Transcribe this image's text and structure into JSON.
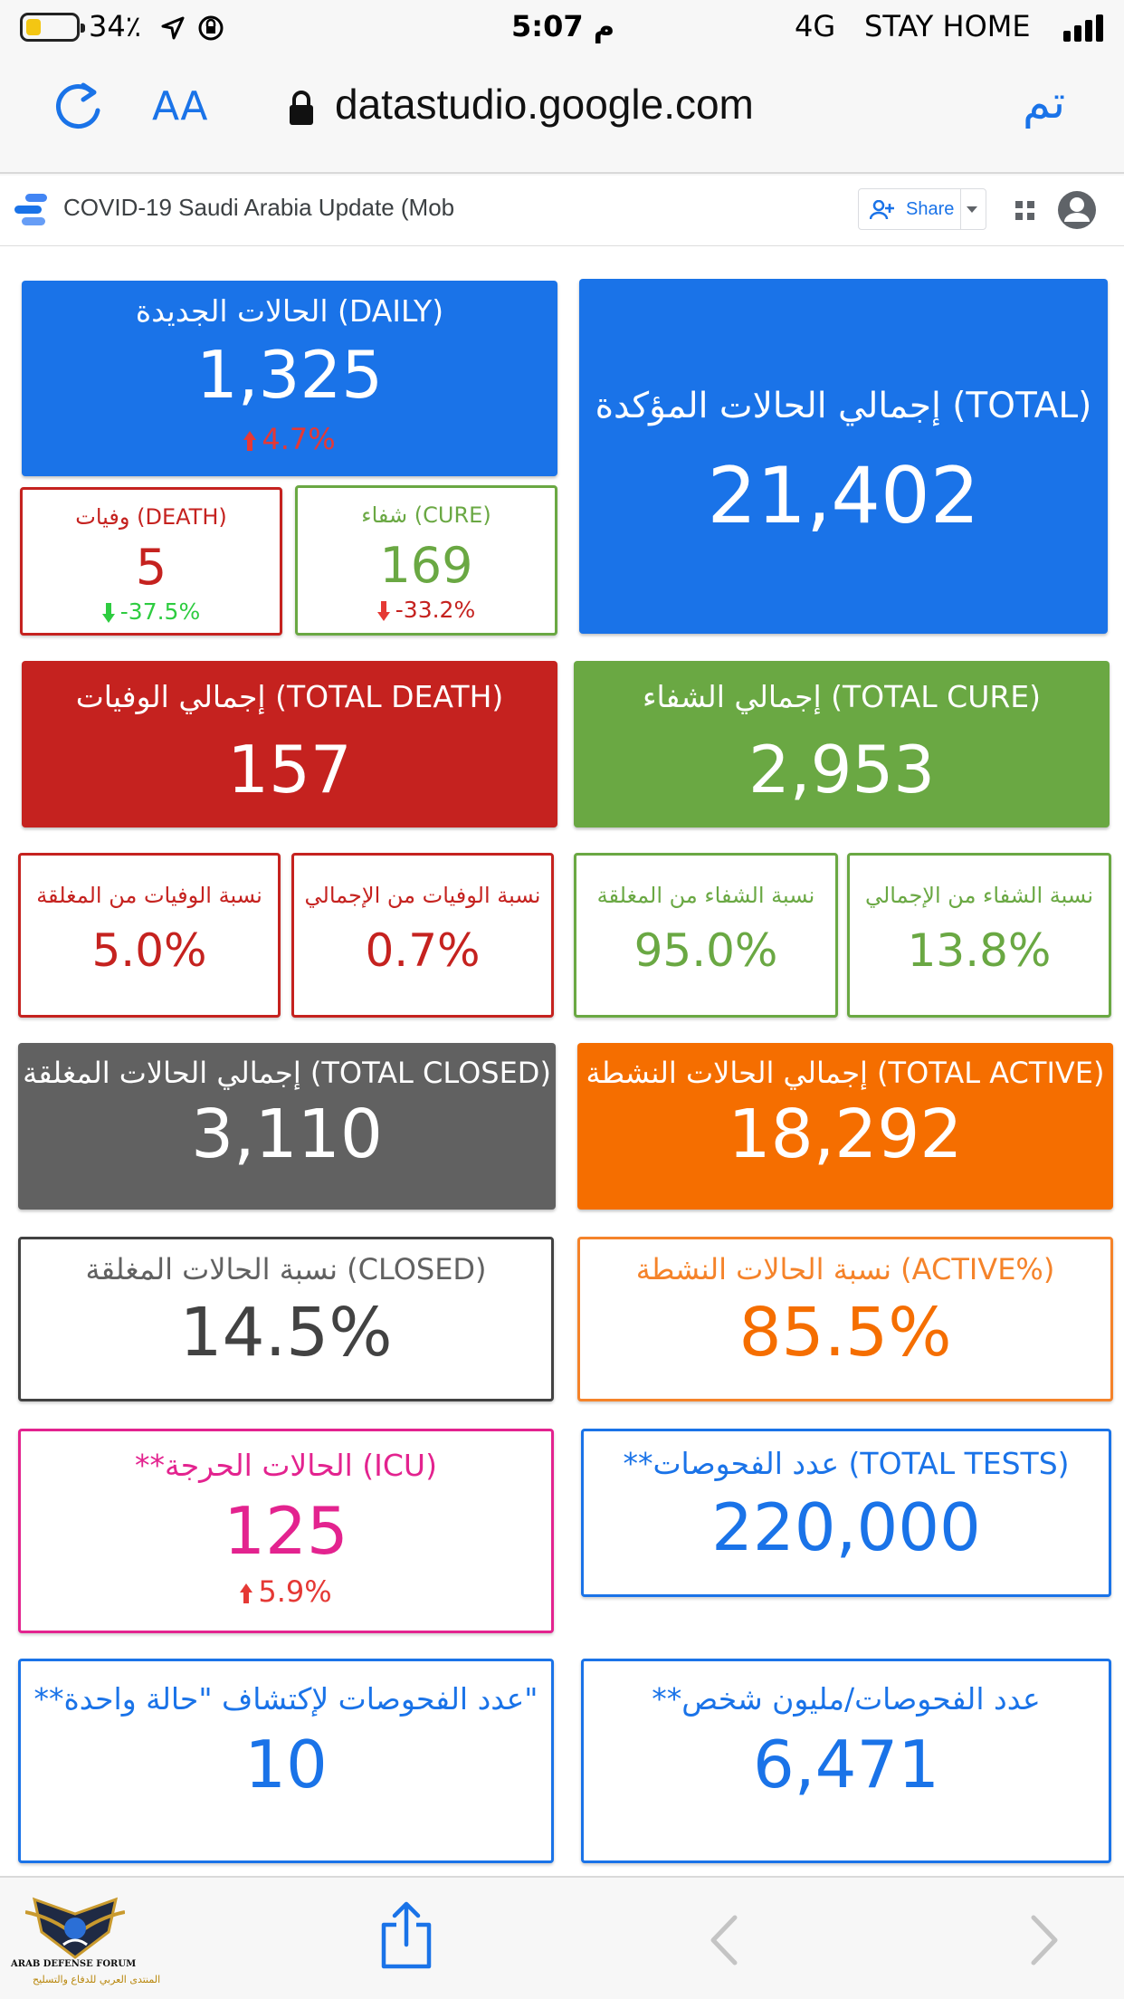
{
  "status_bar": {
    "battery": "34٪",
    "time": "5:07 م",
    "network": "4G",
    "carrier": "STAY HOME"
  },
  "browser": {
    "text_size_label": "AA",
    "url": "datastudio.google.com",
    "done_label": "تم"
  },
  "report": {
    "title": "COVID-19 Saudi Arabia Update (Mob",
    "share_label": "Share"
  },
  "cards": {
    "daily": {
      "label": "الحالات الجديدة (DAILY)",
      "value": "1,325",
      "change": "4.7%"
    },
    "total": {
      "label": "إجمالي الحالات المؤكدة (TOTAL)",
      "value": "21,402"
    },
    "death": {
      "label": "وفيات (DEATH)",
      "value": "5",
      "change": "-37.5%"
    },
    "cure": {
      "label": "شفاء (CURE)",
      "value": "169",
      "change": "-33.2%"
    },
    "total_death": {
      "label": "إجمالي الوفيات (TOTAL DEATH)",
      "value": "157"
    },
    "total_cure": {
      "label": "إجمالي الشفاء (TOTAL CURE)",
      "value": "2,953"
    },
    "death_closed_pct": {
      "label": "نسبة الوفيات من المغلقة",
      "value": "5.0%"
    },
    "death_total_pct": {
      "label": "نسبة الوفيات من الإجمالي",
      "value": "0.7%"
    },
    "cure_closed_pct": {
      "label": "نسبة الشفاء من المغلقة",
      "value": "95.0%"
    },
    "cure_total_pct": {
      "label": "نسبة الشفاء من الإجمالي",
      "value": "13.8%"
    },
    "total_closed": {
      "label": "إجمالي الحالات المغلقة (TOTAL CLOSED)",
      "value": "3,110"
    },
    "total_active": {
      "label": "إجمالي الحالات النشطة (TOTAL ACTIVE)",
      "value": "18,292"
    },
    "closed_pct": {
      "label": "نسبة الحالات المغلقة (CLOSED)",
      "value": "14.5%"
    },
    "active_pct": {
      "label": "نسبة الحالات النشطة (ACTIVE%)",
      "value": "85.5%"
    },
    "icu": {
      "label": "**الحالات الحرجة (ICU)",
      "value": "125",
      "change": "5.9%"
    },
    "total_tests": {
      "label": "**عدد الفحوصات (TOTAL TESTS)",
      "value": "220,000"
    },
    "tests_per_case": {
      "label": "**عدد الفحوصات لإكتشاف \"حالة واحدة\"",
      "value": "10"
    },
    "tests_per_million": {
      "label": "**عدد الفحوصات/مليون شخص",
      "value": "6,471"
    }
  },
  "watermark": {
    "line1": "ARAB DEFENSE FORUM",
    "line2": "المنتدى العربي للدفاع والتسليح"
  },
  "colors": {
    "blue": "#1a73e8",
    "red": "#c5221f",
    "green": "#6aa843",
    "grey": "#616161",
    "orange": "#f56e00",
    "magenta": "#e3238f",
    "arrow_up_red": "#e53935",
    "arrow_down_green": "#2ecc40"
  }
}
